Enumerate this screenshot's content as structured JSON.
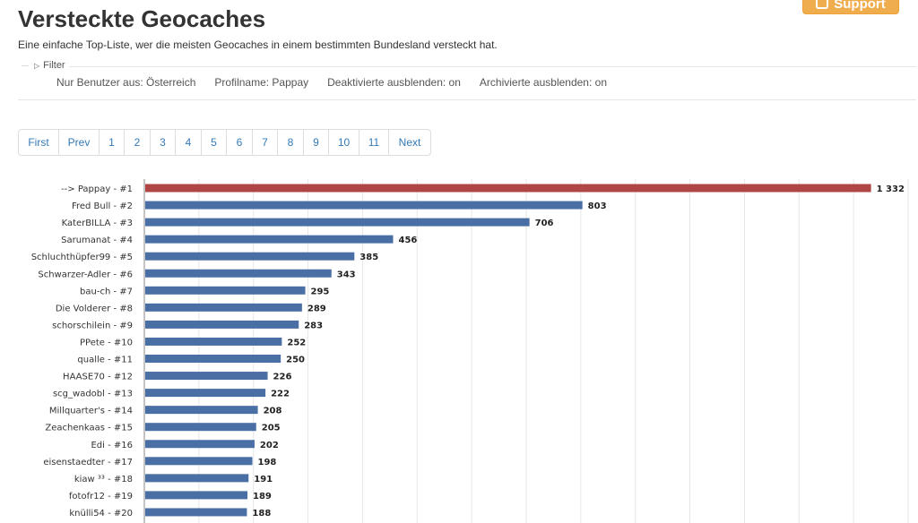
{
  "page": {
    "title": "Versteckte Geocaches",
    "subtitle": "Eine einfache Top-Liste, wer die meisten Geocaches in einem bestimmten Bundesland versteckt hat.",
    "support_label": "Support"
  },
  "filter": {
    "legend": "Filter",
    "items": [
      "Nur Benutzer aus: Österreich",
      "Profilname: Pappay",
      "Deaktivierte ausblenden: on",
      "Archivierte ausblenden: on"
    ]
  },
  "pagination": [
    "First",
    "Prev",
    "1",
    "2",
    "3",
    "4",
    "5",
    "6",
    "7",
    "8",
    "9",
    "10",
    "11",
    "Next"
  ],
  "chart_data": {
    "type": "bar",
    "orientation": "horizontal",
    "categories": [
      "--> Pappay - #1",
      "Fred Bull - #2",
      "KaterBILLA - #3",
      "Sarumanat - #4",
      "Schluchthüpfer99 - #5",
      "Schwarzer-Adler - #6",
      "bau-ch - #7",
      "Die Volderer - #8",
      "schorschilein - #9",
      "PPete - #10",
      "qualle - #11",
      "HAASE70 - #12",
      "scg_wadobl - #13",
      "Millquarter's - #14",
      "Zeachenkaas - #15",
      "Edi - #16",
      "eisenstaedter - #17",
      "kiaw ³³ - #18",
      "fotofr12 - #19",
      "knülli54 - #20"
    ],
    "values": [
      1332,
      803,
      706,
      456,
      385,
      343,
      295,
      289,
      283,
      252,
      250,
      226,
      222,
      208,
      205,
      202,
      198,
      191,
      189,
      188
    ],
    "value_labels": [
      "1 332",
      "803",
      "706",
      "456",
      "385",
      "343",
      "295",
      "289",
      "283",
      "252",
      "250",
      "226",
      "222",
      "208",
      "205",
      "202",
      "198",
      "191",
      "189",
      "188"
    ],
    "xlim": [
      0,
      1400
    ],
    "grid": true,
    "colors": {
      "highlight": "#b04545",
      "default": "#4a6fa5",
      "grid": "#e6e6e6",
      "axis": "#888888"
    }
  }
}
